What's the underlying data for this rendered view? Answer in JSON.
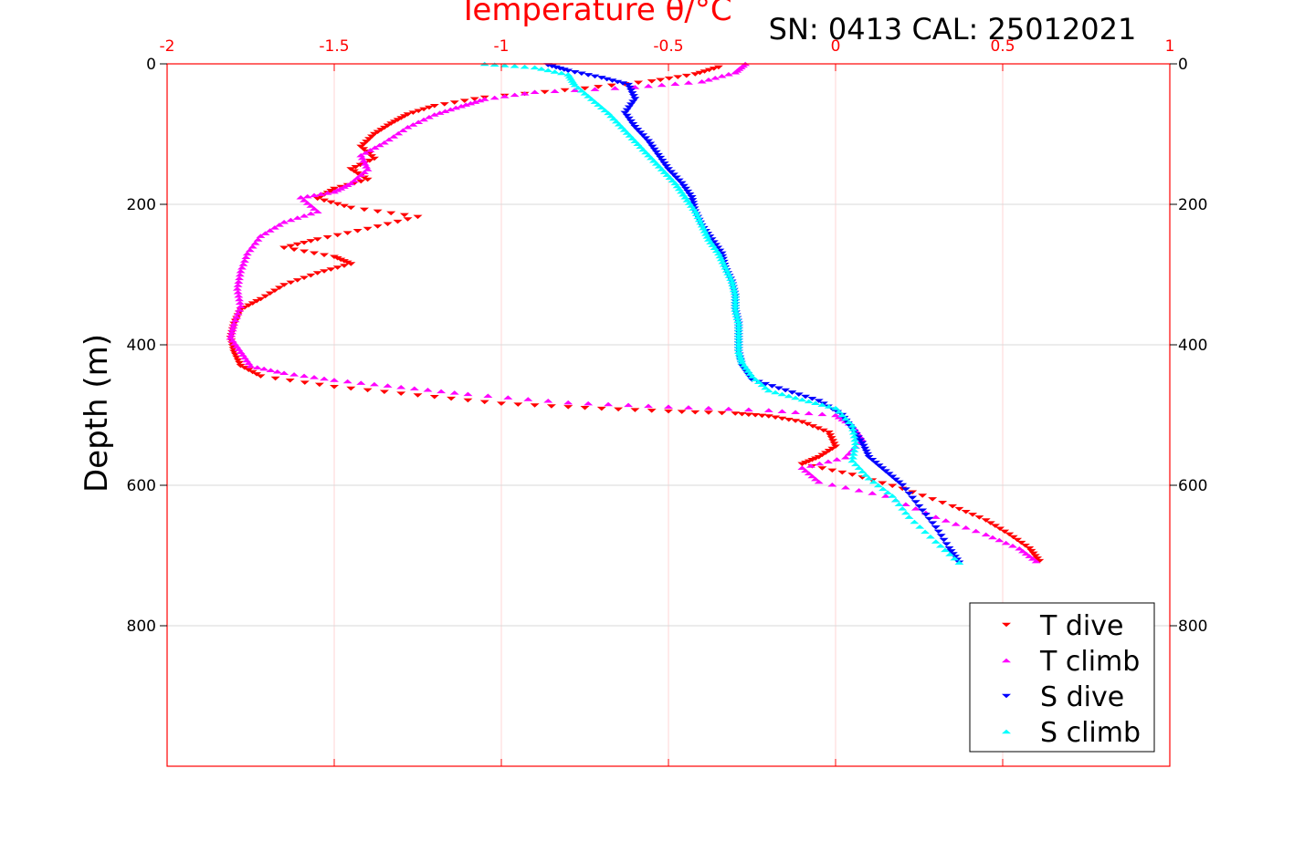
{
  "chart_data": {
    "type": "scatter",
    "xlabel": "Temperature θ/°C",
    "ylabel": "Depth (m)",
    "annotation": "SN: 0413  CAL: 25012021",
    "xlim": [
      -2,
      1
    ],
    "ylim": [
      0,
      1000
    ],
    "y_reversed": true,
    "x_axis_position": "top",
    "y_axis_labels": "both",
    "grid": true,
    "legend_position": "bottom-right",
    "x_ticks": [
      -2,
      -1.5,
      -1,
      -0.5,
      0,
      0.5,
      1
    ],
    "x_tick_labels": [
      "-2",
      "-1.5",
      "-1",
      "-0.5",
      "0",
      "0.5",
      "1"
    ],
    "y_ticks": [
      0,
      200,
      400,
      600,
      800
    ],
    "y_tick_labels": [
      "0",
      "200",
      "400",
      "600",
      "800"
    ],
    "colors": {
      "axis": "#ff0000",
      "grid": "#d9d9d9"
    },
    "series": [
      {
        "name": "T dive",
        "color": "#ff0000",
        "marker": "triangle-down",
        "points": [
          [
            -0.35,
            5
          ],
          [
            -0.42,
            15
          ],
          [
            -0.55,
            25
          ],
          [
            -0.75,
            35
          ],
          [
            -1.05,
            48
          ],
          [
            -1.2,
            60
          ],
          [
            -1.28,
            72
          ],
          [
            -1.33,
            85
          ],
          [
            -1.38,
            100
          ],
          [
            -1.42,
            118
          ],
          [
            -1.38,
            135
          ],
          [
            -1.45,
            150
          ],
          [
            -1.4,
            165
          ],
          [
            -1.5,
            178
          ],
          [
            -1.55,
            192
          ],
          [
            -1.45,
            205
          ],
          [
            -1.25,
            218
          ],
          [
            -1.4,
            235
          ],
          [
            -1.55,
            250
          ],
          [
            -1.65,
            262
          ],
          [
            -1.5,
            275
          ],
          [
            -1.45,
            285
          ],
          [
            -1.55,
            298
          ],
          [
            -1.65,
            315
          ],
          [
            -1.72,
            335
          ],
          [
            -1.78,
            350
          ],
          [
            -1.8,
            370
          ],
          [
            -1.81,
            390
          ],
          [
            -1.8,
            410
          ],
          [
            -1.78,
            430
          ],
          [
            -1.72,
            445
          ],
          [
            -1.5,
            460
          ],
          [
            -1.25,
            472
          ],
          [
            -1.0,
            484
          ],
          [
            -0.75,
            490
          ],
          [
            -0.5,
            495
          ],
          [
            -0.3,
            498
          ],
          [
            -0.2,
            502
          ],
          [
            -0.1,
            510
          ],
          [
            -0.02,
            525
          ],
          [
            0.0,
            545
          ],
          [
            -0.05,
            560
          ],
          [
            -0.1,
            570
          ],
          [
            0.05,
            585
          ],
          [
            0.2,
            605
          ],
          [
            0.35,
            630
          ],
          [
            0.45,
            650
          ],
          [
            0.52,
            670
          ],
          [
            0.58,
            690
          ],
          [
            0.61,
            708
          ]
        ]
      },
      {
        "name": "T climb",
        "color": "#ff00ff",
        "marker": "triangle-up",
        "points": [
          [
            0.6,
            708
          ],
          [
            0.55,
            690
          ],
          [
            0.45,
            670
          ],
          [
            0.3,
            645
          ],
          [
            0.15,
            615
          ],
          [
            -0.05,
            595
          ],
          [
            -0.1,
            575
          ],
          [
            0.03,
            560
          ],
          [
            0.08,
            535
          ],
          [
            0.05,
            515
          ],
          [
            0.0,
            500
          ],
          [
            -0.2,
            493
          ],
          [
            -0.5,
            488
          ],
          [
            -0.8,
            482
          ],
          [
            -1.1,
            470
          ],
          [
            -1.3,
            460
          ],
          [
            -1.5,
            450
          ],
          [
            -1.65,
            440
          ],
          [
            -1.75,
            430
          ],
          [
            -1.78,
            410
          ],
          [
            -1.81,
            390
          ],
          [
            -1.8,
            370
          ],
          [
            -1.78,
            345
          ],
          [
            -1.79,
            320
          ],
          [
            -1.78,
            295
          ],
          [
            -1.76,
            270
          ],
          [
            -1.72,
            245
          ],
          [
            -1.65,
            225
          ],
          [
            -1.55,
            210
          ],
          [
            -1.6,
            190
          ],
          [
            -1.5,
            182
          ],
          [
            -1.45,
            170
          ],
          [
            -1.4,
            150
          ],
          [
            -1.42,
            130
          ],
          [
            -1.35,
            112
          ],
          [
            -1.28,
            90
          ],
          [
            -1.2,
            72
          ],
          [
            -1.12,
            60
          ],
          [
            -1.05,
            50
          ],
          [
            -0.9,
            40
          ],
          [
            -0.6,
            33
          ],
          [
            -0.4,
            25
          ],
          [
            -0.3,
            12
          ],
          [
            -0.27,
            0
          ]
        ]
      },
      {
        "name": "S dive",
        "color": "#0000ff",
        "marker": "triangle-down",
        "points": [
          [
            -0.86,
            2
          ],
          [
            -0.8,
            10
          ],
          [
            -0.7,
            20
          ],
          [
            -0.62,
            30
          ],
          [
            -0.6,
            50
          ],
          [
            -0.63,
            70
          ],
          [
            -0.6,
            90
          ],
          [
            -0.56,
            110
          ],
          [
            -0.53,
            130
          ],
          [
            -0.5,
            150
          ],
          [
            -0.46,
            170
          ],
          [
            -0.43,
            190
          ],
          [
            -0.42,
            210
          ],
          [
            -0.4,
            230
          ],
          [
            -0.37,
            250
          ],
          [
            -0.34,
            270
          ],
          [
            -0.33,
            290
          ],
          [
            -0.31,
            310
          ],
          [
            -0.3,
            330
          ],
          [
            -0.3,
            350
          ],
          [
            -0.29,
            370
          ],
          [
            -0.29,
            390
          ],
          [
            -0.29,
            410
          ],
          [
            -0.28,
            430
          ],
          [
            -0.25,
            450
          ],
          [
            -0.15,
            465
          ],
          [
            -0.05,
            480
          ],
          [
            0.02,
            500
          ],
          [
            0.05,
            520
          ],
          [
            0.08,
            540
          ],
          [
            0.1,
            560
          ],
          [
            0.15,
            580
          ],
          [
            0.2,
            600
          ],
          [
            0.25,
            630
          ],
          [
            0.3,
            660
          ],
          [
            0.34,
            690
          ],
          [
            0.37,
            710
          ]
        ]
      },
      {
        "name": "S climb",
        "color": "#00ffff",
        "marker": "triangle-up",
        "points": [
          [
            0.37,
            710
          ],
          [
            0.3,
            680
          ],
          [
            0.22,
            645
          ],
          [
            0.17,
            615
          ],
          [
            0.1,
            590
          ],
          [
            0.05,
            565
          ],
          [
            0.06,
            540
          ],
          [
            0.05,
            515
          ],
          [
            0.0,
            490
          ],
          [
            -0.1,
            478
          ],
          [
            -0.2,
            465
          ],
          [
            -0.25,
            445
          ],
          [
            -0.28,
            425
          ],
          [
            -0.29,
            410
          ],
          [
            -0.29,
            390
          ],
          [
            -0.29,
            370
          ],
          [
            -0.3,
            350
          ],
          [
            -0.3,
            330
          ],
          [
            -0.31,
            310
          ],
          [
            -0.33,
            290
          ],
          [
            -0.35,
            270
          ],
          [
            -0.38,
            250
          ],
          [
            -0.4,
            230
          ],
          [
            -0.42,
            210
          ],
          [
            -0.45,
            190
          ],
          [
            -0.48,
            170
          ],
          [
            -0.52,
            150
          ],
          [
            -0.56,
            130
          ],
          [
            -0.6,
            110
          ],
          [
            -0.64,
            90
          ],
          [
            -0.68,
            70
          ],
          [
            -0.73,
            50
          ],
          [
            -0.78,
            30
          ],
          [
            -0.8,
            15
          ],
          [
            -0.9,
            5
          ],
          [
            -1.05,
            0
          ]
        ]
      }
    ]
  }
}
